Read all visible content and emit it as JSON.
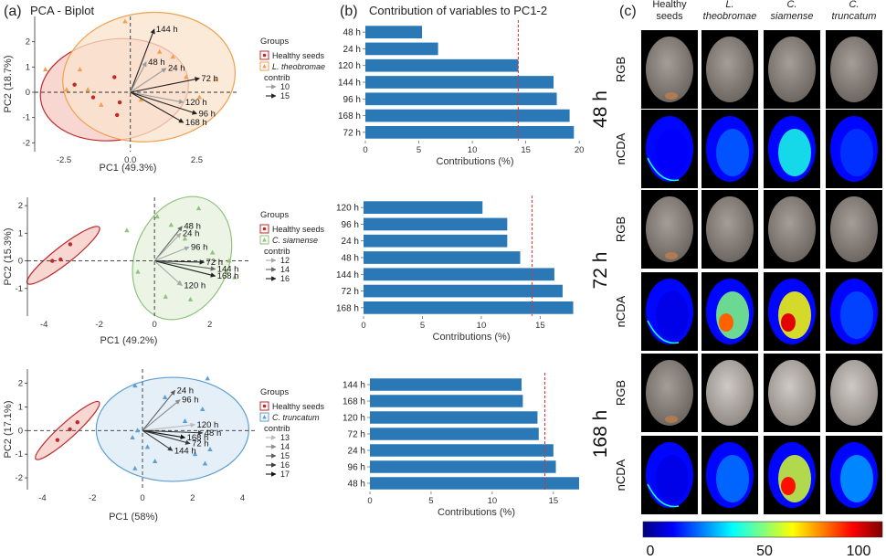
{
  "figure": {
    "panel_a_label": "(a)",
    "panel_b_label": "(b)",
    "panel_c_label": "(c)",
    "pca_title": "PCA - Biplot",
    "bar_title": "Contribution of variables to PC1-2"
  },
  "chart_data": [
    {
      "type": "scatter",
      "panel": "a1",
      "title": "PCA - Biplot",
      "xlabel": "PC1 (49.3%)",
      "ylabel": "PC2 (18.7%)",
      "xlim": [
        -3.6,
        4.1
      ],
      "ylim": [
        -2.35,
        3.0
      ],
      "xticks": [
        -2.5,
        0.0,
        2.5
      ],
      "xtick_labels": [
        "-2.5",
        "0.0",
        "2.5"
      ],
      "yticks": [
        -2,
        -1,
        0,
        1,
        2
      ],
      "legend": {
        "title": "Groups",
        "entries": [
          {
            "label": "Healthy seeds",
            "color": "#c0282a",
            "marker": "dot"
          },
          {
            "label": "L. theobromae",
            "color": "#f0a050",
            "marker": "triangle"
          }
        ],
        "contrib_title": "contrib",
        "contrib_levels": [
          "10",
          "15"
        ],
        "contrib_colors": [
          "#9a9a9a",
          "#222222"
        ]
      },
      "series": [
        {
          "name": "Healthy seeds",
          "color": "#c0282a",
          "marker": "dot",
          "x": [
            -2.1,
            -0.6,
            -0.5,
            -0.4,
            -1.4
          ],
          "y": [
            0.3,
            0.6,
            -0.9,
            -0.4,
            -0.2
          ]
        },
        {
          "name": "L. theobromae",
          "color": "#f0a050",
          "marker": "triangle",
          "x": [
            -3.2,
            -1.9,
            -1.6,
            -1.1,
            -0.2,
            1.1,
            2.1,
            3.2,
            1.6,
            -2.4,
            0.4,
            2.6
          ],
          "y": [
            0.9,
            0.9,
            0.1,
            -0.5,
            2.8,
            1.6,
            0.6,
            0.5,
            1.4,
            0.1,
            -0.3,
            -0.2
          ]
        }
      ],
      "ellipses": [
        {
          "group": "Healthy seeds",
          "color": "#c0282a",
          "fill": "#f6c9c3",
          "cx": -0.6,
          "cy": 0.1,
          "rx": 2.8,
          "ry": 2.0,
          "rot": -8
        },
        {
          "group": "L. theobromae",
          "color": "#f0a050",
          "fill": "#fbe3cc",
          "cx": 0.7,
          "cy": 0.6,
          "rx": 3.25,
          "ry": 2.55,
          "rot": -6
        }
      ],
      "vectors": [
        {
          "label": "144 h",
          "x": 0.9,
          "y": 2.5,
          "contrib": 15
        },
        {
          "label": "48 h",
          "x": 0.6,
          "y": 1.2,
          "contrib": 12
        },
        {
          "label": "24 h",
          "x": 1.35,
          "y": 0.95,
          "contrib": 11
        },
        {
          "label": "72 h",
          "x": 2.6,
          "y": 0.55,
          "contrib": 15
        },
        {
          "label": "120 h",
          "x": 2.0,
          "y": -0.4,
          "contrib": 12
        },
        {
          "label": "96 h",
          "x": 2.5,
          "y": -0.85,
          "contrib": 14
        },
        {
          "label": "168 h",
          "x": 2.0,
          "y": -1.2,
          "contrib": 15
        }
      ]
    },
    {
      "type": "scatter",
      "panel": "a2",
      "xlabel": "PC1 (49.2%)",
      "ylabel": "PC2 (15.3%)",
      "xlim": [
        -4.6,
        3.4
      ],
      "ylim": [
        -2.0,
        2.3
      ],
      "xticks": [
        -4,
        -2,
        0,
        2
      ],
      "xtick_labels": [
        "-4",
        "-2",
        "0",
        "2"
      ],
      "yticks": [
        -1,
        0,
        1,
        2
      ],
      "legend": {
        "title": "Groups",
        "entries": [
          {
            "label": "Healthy seeds",
            "color": "#c0282a",
            "marker": "dot"
          },
          {
            "label": "C. siamense",
            "color": "#8fc27a",
            "marker": "triangle"
          }
        ],
        "contrib_title": "contrib",
        "contrib_levels": [
          "12",
          "14",
          "16"
        ],
        "contrib_colors": [
          "#a8a8a8",
          "#666666",
          "#222222"
        ]
      },
      "series": [
        {
          "name": "Healthy seeds",
          "color": "#c0282a",
          "marker": "dot",
          "x": [
            -3.7,
            -3.4,
            -3.05
          ],
          "y": [
            0.0,
            0.05,
            0.6
          ]
        },
        {
          "name": "C. siamense",
          "color": "#8fc27a",
          "marker": "triangle",
          "x": [
            -1.0,
            0.1,
            1.6,
            2.1,
            2.7,
            2.6,
            2.9,
            0.4,
            0.9,
            1.3,
            1.1,
            0.6,
            -0.6
          ],
          "y": [
            1.1,
            1.6,
            1.9,
            0.3,
            0.0,
            -0.4,
            -0.6,
            -1.3,
            -0.8,
            -1.4,
            0.8,
            1.3,
            -0.4
          ]
        }
      ],
      "ellipses": [
        {
          "group": "Healthy seeds",
          "color": "#c0282a",
          "fill": "#f6c9c3",
          "cx": -3.3,
          "cy": 0.2,
          "rx": 1.65,
          "ry": 0.32,
          "rot": -38
        },
        {
          "group": "C. siamense",
          "color": "#8fc27a",
          "fill": "#e5f1dc",
          "cx": 1.0,
          "cy": 0.1,
          "rx": 2.3,
          "ry": 1.7,
          "rot": -68
        }
      ],
      "vectors": [
        {
          "label": "48 h",
          "x": 1.0,
          "y": 1.25,
          "contrib": 15
        },
        {
          "label": "24 h",
          "x": 0.95,
          "y": 1.0,
          "contrib": 12
        },
        {
          "label": "96 h",
          "x": 1.25,
          "y": 0.5,
          "contrib": 13
        },
        {
          "label": "72 h",
          "x": 1.8,
          "y": -0.05,
          "contrib": 16
        },
        {
          "label": "144 h",
          "x": 2.2,
          "y": -0.3,
          "contrib": 15
        },
        {
          "label": "168 h",
          "x": 2.2,
          "y": -0.55,
          "contrib": 16
        },
        {
          "label": "120 h",
          "x": 1.0,
          "y": -0.9,
          "contrib": 12
        }
      ]
    },
    {
      "type": "scatter",
      "panel": "a3",
      "xlabel": "PC1 (58%)",
      "ylabel": "PC2 (17.1%)",
      "xlim": [
        -4.6,
        4.6
      ],
      "ylim": [
        -2.5,
        2.6
      ],
      "xticks": [
        -4,
        -2,
        0,
        2,
        4
      ],
      "xtick_labels": [
        "-4",
        "-2",
        "0",
        "2",
        "4"
      ],
      "yticks": [
        -2,
        -1,
        0,
        1,
        2
      ],
      "legend": {
        "title": "Groups",
        "entries": [
          {
            "label": "Healthy seeds",
            "color": "#c0282a",
            "marker": "dot"
          },
          {
            "label": "C. truncatum",
            "color": "#5b9fd4",
            "marker": "triangle"
          }
        ],
        "contrib_title": "contrib",
        "contrib_levels": [
          "13",
          "14",
          "15",
          "16",
          "17"
        ],
        "contrib_colors": [
          "#bbbbbb",
          "#8c8c8c",
          "#5e5e5e",
          "#3a3a3a",
          "#111111"
        ]
      },
      "series": [
        {
          "name": "Healthy seeds",
          "color": "#c0282a",
          "marker": "dot",
          "x": [
            -3.4,
            -2.9,
            -2.6
          ],
          "y": [
            -0.4,
            0.05,
            0.35
          ]
        },
        {
          "name": "C. truncatum",
          "color": "#5b9fd4",
          "marker": "triangle",
          "x": [
            -0.3,
            0.9,
            2.6,
            2.4,
            1.7,
            -0.2,
            -0.4,
            0.2,
            0.5,
            2.7,
            2.5,
            2.1,
            -0.3
          ],
          "y": [
            1.9,
            1.4,
            2.2,
            0.9,
            0.4,
            0.0,
            -0.3,
            -0.7,
            -1.3,
            -0.8,
            -1.4,
            -1.0,
            -1.6
          ]
        }
      ],
      "ellipses": [
        {
          "group": "Healthy seeds",
          "color": "#c0282a",
          "fill": "#f6c9c3",
          "cx": -3.0,
          "cy": 0.0,
          "rx": 1.7,
          "ry": 0.33,
          "rot": -42
        },
        {
          "group": "C. truncatum",
          "color": "#5b9fd4",
          "fill": "#dceaf5",
          "cx": 1.2,
          "cy": 0.05,
          "rx": 3.05,
          "ry": 2.2,
          "rot": 0
        }
      ],
      "vectors": [
        {
          "label": "24 h",
          "x": 1.3,
          "y": 1.7,
          "contrib": 15
        },
        {
          "label": "96 h",
          "x": 1.5,
          "y": 1.3,
          "contrib": 14
        },
        {
          "label": "120 h",
          "x": 2.1,
          "y": 0.25,
          "contrib": 13
        },
        {
          "label": "48 h",
          "x": 2.4,
          "y": -0.1,
          "contrib": 16
        },
        {
          "label": "168 h",
          "x": 1.7,
          "y": -0.3,
          "contrib": 17
        },
        {
          "label": "72 h",
          "x": 1.9,
          "y": -0.55,
          "contrib": 16
        },
        {
          "label": "144 h",
          "x": 1.2,
          "y": -0.85,
          "contrib": 16
        }
      ]
    },
    {
      "type": "bar",
      "panel": "b1",
      "title": "Contribution of variables to PC1-2",
      "orientation": "horizontal",
      "xlabel": "Contributions (%)",
      "categories": [
        "48 h",
        "24 h",
        "120 h",
        "144 h",
        "96 h",
        "168 h",
        "72 h"
      ],
      "values": [
        5.3,
        6.8,
        14.3,
        17.6,
        17.9,
        19.1,
        19.5
      ],
      "xlim": [
        0,
        20.5
      ],
      "xticks": [
        0,
        5,
        10,
        15,
        20
      ],
      "reference_line": 14.3,
      "bar_color": "#2b78b7"
    },
    {
      "type": "bar",
      "panel": "b2",
      "orientation": "horizontal",
      "xlabel": "Contributions (%)",
      "categories": [
        "120 h",
        "96 h",
        "24 h",
        "48 h",
        "144 h",
        "72 h",
        "168 h"
      ],
      "values": [
        10.1,
        12.2,
        12.2,
        13.3,
        16.2,
        16.9,
        17.8
      ],
      "xlim": [
        0,
        18.3
      ],
      "xticks": [
        0,
        5,
        10,
        15
      ],
      "reference_line": 14.3,
      "bar_color": "#2b78b7"
    },
    {
      "type": "bar",
      "panel": "b3",
      "orientation": "horizontal",
      "xlabel": "Contributions (%)",
      "categories": [
        "144 h",
        "168 h",
        "120 h",
        "72 h",
        "24 h",
        "96 h",
        "48 h"
      ],
      "values": [
        12.4,
        12.5,
        13.7,
        13.8,
        15.0,
        15.2,
        17.1
      ],
      "xlim": [
        0,
        17.4
      ],
      "xticks": [
        0,
        5,
        10,
        15
      ],
      "reference_line": 14.3,
      "bar_color": "#2b78b7"
    }
  ],
  "images_panel": {
    "columns": [
      "Healthy seeds",
      "L. theobromae",
      "C. siamense",
      "C. truncatum"
    ],
    "times": [
      "48 h",
      "72 h",
      "168 h"
    ],
    "row_types": [
      "RGB",
      "nCDA"
    ],
    "colorbar": {
      "min": "0",
      "mid": "50",
      "max": "100",
      "colors": [
        "#00007f",
        "#0000ff",
        "#007fff",
        "#00ffff",
        "#7fff7f",
        "#ffff00",
        "#ff7f00",
        "#ff0000",
        "#7f0000"
      ]
    },
    "nCDA_levels": [
      [
        0.12,
        0.22,
        0.4,
        0.18
      ],
      [
        0.1,
        0.5,
        0.62,
        0.2
      ],
      [
        0.1,
        0.24,
        0.58,
        0.28
      ]
    ]
  }
}
